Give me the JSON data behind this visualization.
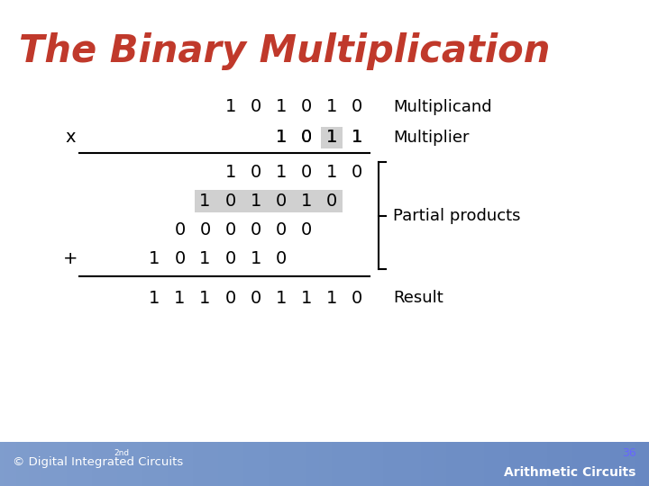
{
  "title": "The Binary Multiplication",
  "title_color": "#c0392b",
  "title_italic": true,
  "title_bold": true,
  "bg_color": "#ffffff",
  "footer_bg": "#8888bb",
  "footer_left": "© Digital Integrated Circuits",
  "footer_left_super": "2nd",
  "footer_right_top": "36",
  "footer_right_bottom": "Arithmetic Circuits",
  "multiplicand_label": "Multiplicand",
  "multiplier_label": "Multiplier",
  "partial_label": "Partial products",
  "result_label": "Result",
  "multiplicand": [
    1,
    0,
    1,
    0,
    1,
    0
  ],
  "multiplier": [
    1,
    0,
    1,
    1
  ],
  "pp1": [
    1,
    0,
    1,
    0,
    1,
    0
  ],
  "pp2": [
    1,
    0,
    1,
    0,
    1,
    0
  ],
  "pp3": [
    0,
    0,
    0,
    0,
    0,
    0
  ],
  "pp4": [
    1,
    0,
    1,
    0,
    1,
    0
  ],
  "result": [
    1,
    1,
    1,
    0,
    0,
    1,
    1,
    1,
    0
  ],
  "highlight_color": "#d0d0d0"
}
